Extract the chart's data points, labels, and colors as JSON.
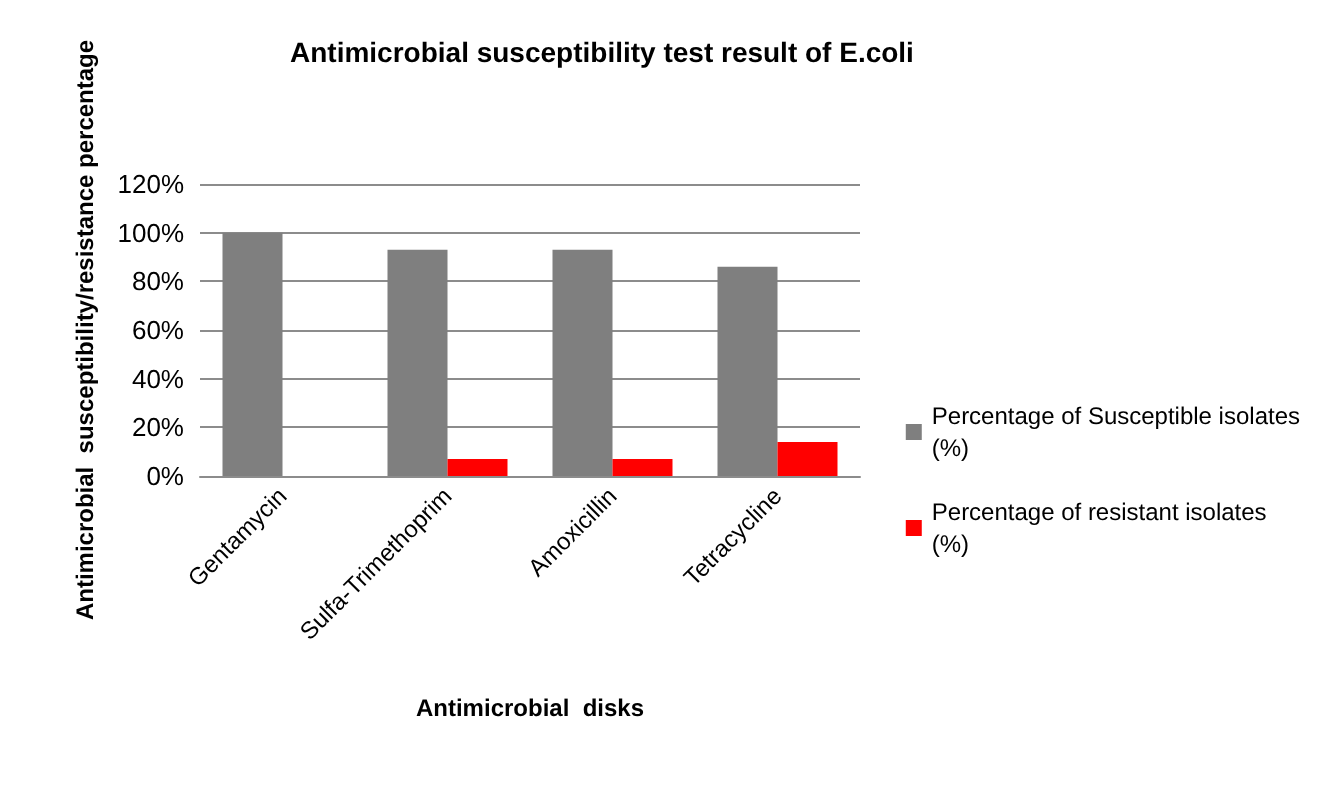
{
  "chart_data": {
    "type": "bar",
    "title": "Antimicrobial susceptibility test result of E.coli",
    "xlabel": "Antimicrobial  disks",
    "ylabel": "Antimicrobial  susceptibility/resistance percentage",
    "categories": [
      "Gentamycin",
      "Sulfa-Trimethoprim",
      "Amoxicillin",
      "Tetracycline"
    ],
    "series": [
      {
        "name": "Percentage of Susceptible isolates (%)",
        "color": "#7f7f7f",
        "values": [
          100,
          93,
          93,
          86
        ]
      },
      {
        "name": "Percentage of resistant isolates (%)",
        "color": "#ff0000",
        "values": [
          0,
          7,
          7,
          14
        ]
      }
    ],
    "ylim": [
      0,
      120
    ],
    "yticks": [
      {
        "value": 0,
        "label": "0%"
      },
      {
        "value": 20,
        "label": "20%"
      },
      {
        "value": 40,
        "label": "40%"
      },
      {
        "value": 60,
        "label": "60%"
      },
      {
        "value": 80,
        "label": "80%"
      },
      {
        "value": 100,
        "label": "100%"
      },
      {
        "value": 120,
        "label": "120%"
      }
    ],
    "grid": "y",
    "legend": "right"
  }
}
